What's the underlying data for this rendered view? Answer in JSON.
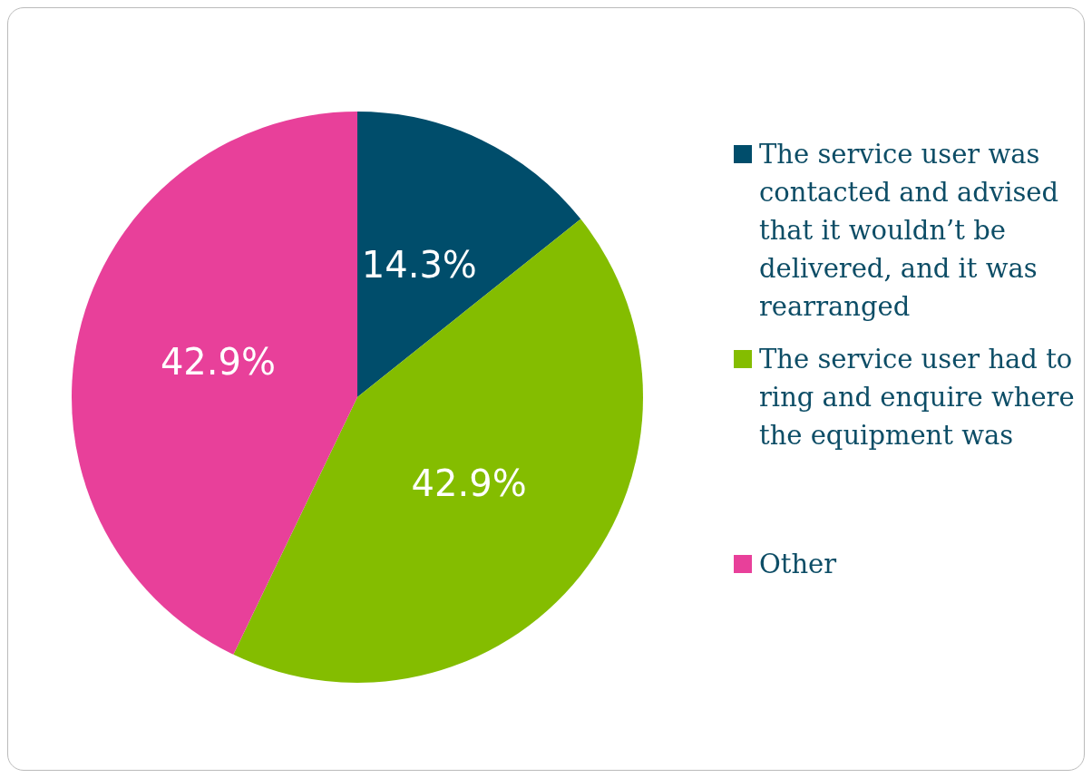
{
  "chart_data": {
    "type": "pie",
    "categories": [
      "The service user was contacted and advised that it wouldn’t be delivered, and it was rearranged",
      "The service user had to ring and enquire where the equipment was",
      "Other"
    ],
    "values": [
      14.3,
      42.9,
      42.9
    ],
    "colors": [
      "#004d6b",
      "#84bd00",
      "#e8409a"
    ],
    "value_labels": [
      "14.3%",
      "42.9%",
      "42.9%"
    ],
    "legend": "right"
  }
}
